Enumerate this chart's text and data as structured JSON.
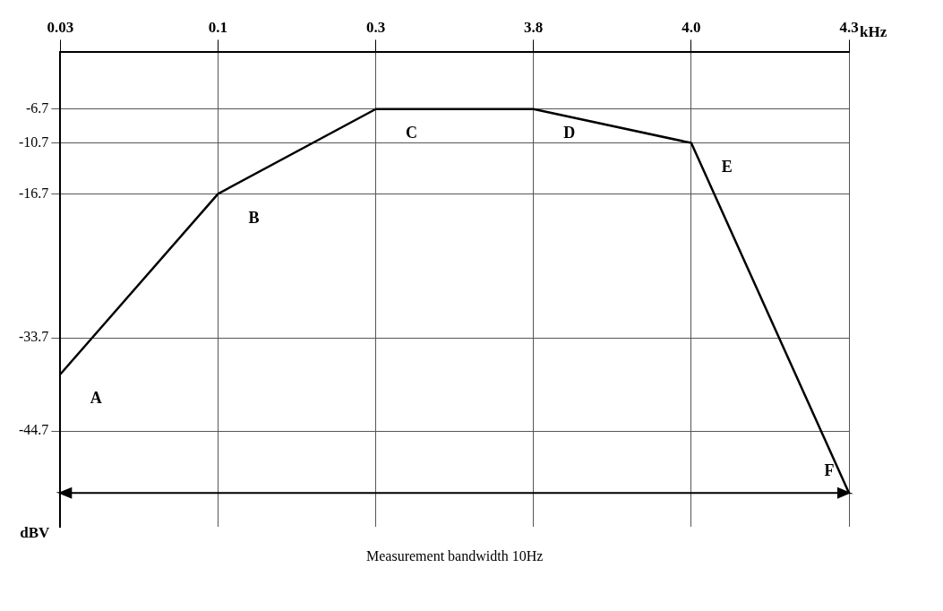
{
  "chart_data": {
    "type": "line",
    "xlabel": "kHz",
    "ylabel": "dBV",
    "categories": [
      "0.03",
      "0.1",
      "0.3",
      "3.8",
      "4.0",
      "4.3"
    ],
    "series": [
      {
        "color": "#000000",
        "values": [
          -38,
          -16.7,
          -6.7,
          -6.7,
          -10.7,
          -52
        ]
      }
    ],
    "ylim": [
      -56,
      0
    ],
    "yticks": [
      -6.7,
      -10.7,
      -16.7,
      -33.7,
      -44.7
    ],
    "grid": true,
    "legend": false,
    "marker": "none",
    "line_style": "solid",
    "annotations": [
      {
        "text": "A",
        "x": "0.03",
        "y": -38
      },
      {
        "text": "B",
        "x": "0.1",
        "y": -16.7
      },
      {
        "text": "C",
        "x": "0.3",
        "y": -6.7
      },
      {
        "text": "D",
        "x": "3.8",
        "y": -6.7
      },
      {
        "text": "E",
        "x": "4.0",
        "y": -10.7
      },
      {
        "text": "F",
        "x": "4.3",
        "y": -52
      }
    ],
    "ref_lines": [
      {
        "axis": "y",
        "value": -52,
        "label": "Measurement bandwidth 10Hz",
        "color": "#000000"
      }
    ]
  }
}
